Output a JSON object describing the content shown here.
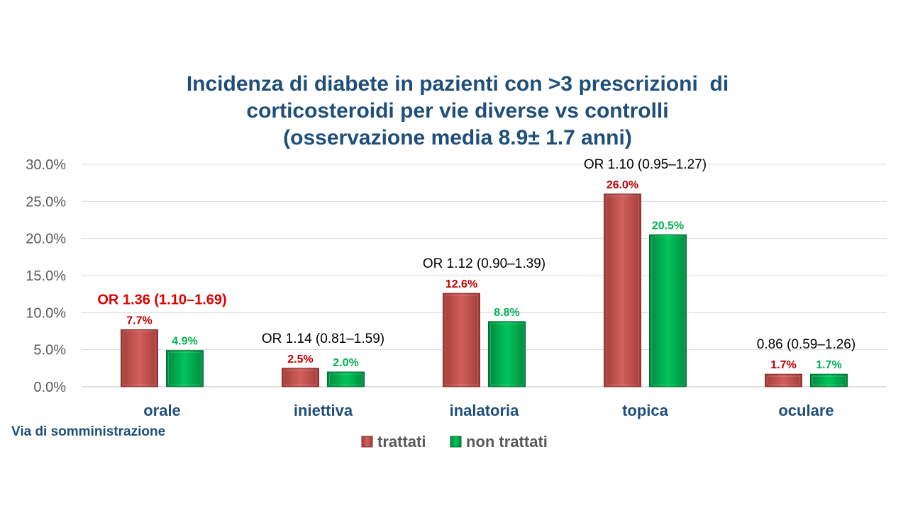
{
  "chart_data": {
    "type": "bar",
    "title": [
      "Incidenza di diabete in pazienti con >3 prescrizioni  di",
      "corticosteroidi per vie diverse vs controlli",
      "(osservazione media 8.9± 1.7 anni)"
    ],
    "xlabel": "Via di somministrazione",
    "ylabel": "",
    "categories": [
      "orale",
      "iniettiva",
      "inalatoria",
      "topica",
      "oculare"
    ],
    "series": [
      {
        "name": "trattati",
        "values": [
          7.7,
          2.5,
          12.6,
          26.0,
          1.7
        ],
        "labels": [
          "7.7%",
          "2.5%",
          "12.6%",
          "26.0%",
          "1.7%"
        ]
      },
      {
        "name": "non trattati",
        "values": [
          4.9,
          2.0,
          8.8,
          20.5,
          1.7
        ],
        "labels": [
          "4.9%",
          "2.0%",
          "8.8%",
          "20.5%",
          "1.7%"
        ]
      }
    ],
    "annotations": [
      "OR 1.36 (1.10–1.69)",
      "OR 1.14 (0.81–1.59)",
      "OR 1.12 (0.90–1.39)",
      "OR 1.10 (0.95–1.27)",
      "0.86 (0.59–1.26)"
    ],
    "annotation_highlight": [
      true,
      false,
      false,
      false,
      false
    ],
    "ylim": [
      0,
      30
    ],
    "yticks": [
      "0.0%",
      "5.0%",
      "10.0%",
      "15.0%",
      "20.0%",
      "25.0%",
      "30.0%"
    ],
    "grid": true,
    "legend_position": "bottom",
    "colors": {
      "trattati": "#c0504d",
      "non_trattati": "#00b050",
      "trattati_label": "#c00000",
      "non_trattati_label": "#00b050",
      "highlight": "#e00000",
      "category": "#1f4e79",
      "title": "#1f4e79"
    }
  }
}
